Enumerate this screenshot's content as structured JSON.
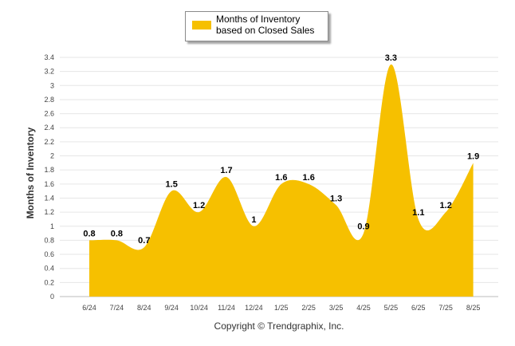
{
  "chart_data": {
    "type": "area",
    "categories": [
      "6/24",
      "7/24",
      "8/24",
      "9/24",
      "10/24",
      "11/24",
      "12/24",
      "1/25",
      "2/25",
      "3/25",
      "4/25",
      "5/25",
      "6/25",
      "7/25",
      "8/25"
    ],
    "series": [
      {
        "name": "Months of Inventory based on Closed Sales",
        "values": [
          0.8,
          0.8,
          0.7,
          1.5,
          1.2,
          1.7,
          1.0,
          1.6,
          1.6,
          1.3,
          0.9,
          3.3,
          1.1,
          1.2,
          1.9
        ],
        "labels": [
          "0.8",
          "0.8",
          "0.7",
          "1.5",
          "1.2",
          "1.7",
          "1",
          "1.6",
          "1.6",
          "1.3",
          "0.9",
          "3.3",
          "1.1",
          "1.2",
          "1.9"
        ]
      }
    ],
    "ylabel": "Months of Inventory",
    "ylim": [
      0,
      3.4
    ],
    "yticks": [
      "0",
      "0.2",
      "0.4",
      "0.6",
      "0.8",
      "1",
      "1.2",
      "1.4",
      "1.6",
      "1.8",
      "2",
      "2.2",
      "2.4",
      "2.6",
      "2.8",
      "3",
      "3.2",
      "3.4"
    ],
    "grid": true,
    "legend_position": "top-center",
    "color": "#f6c000"
  },
  "legend": {
    "label": "Months of Inventory based on Closed Sales"
  },
  "footer": {
    "copyright": "Copyright © Trendgraphix, Inc."
  }
}
